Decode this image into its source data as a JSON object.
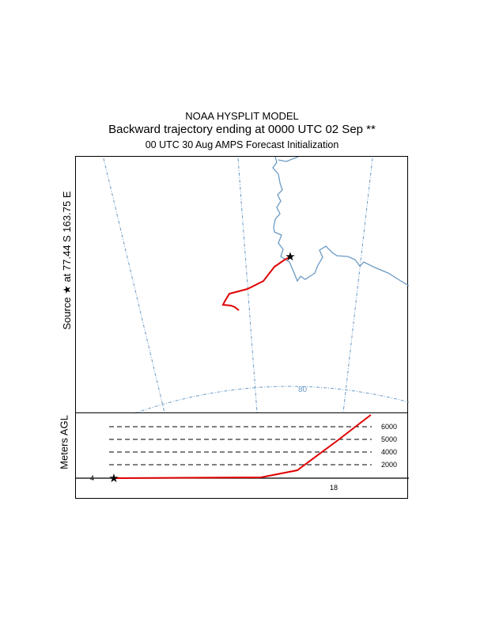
{
  "header": {
    "line1": "NOAA HYSPLIT MODEL",
    "line2": "Backward trajectory ending at 0000 UTC 02 Sep **",
    "line3": "00 UTC 30 Aug    AMPS  Forecast Initialization"
  },
  "source_label": "Source ★  at   77.44 S  163.75 E",
  "map": {
    "latitude_label": "80",
    "coast_color": "#6b9ac4",
    "grid_color": "#6b9ac4",
    "trajectory_color": "#e00000"
  },
  "profile": {
    "ylabel": "Meters AGL",
    "height_labels": [
      "2000",
      "4000",
      "5000",
      "6000"
    ],
    "time_labels": [
      "4",
      "18"
    ]
  }
}
